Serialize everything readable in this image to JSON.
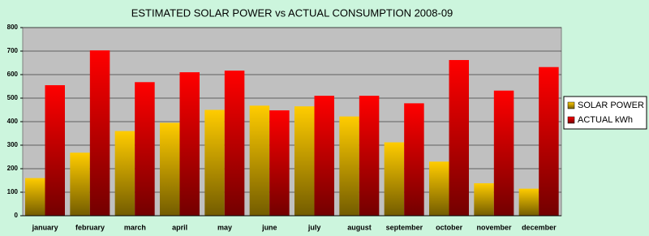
{
  "chart_data": {
    "type": "bar",
    "title": "ESTIMATED SOLAR POWER vs ACTUAL CONSUMPTION 2008-09",
    "categories": [
      "january",
      "february",
      "march",
      "april",
      "may",
      "june",
      "july",
      "august",
      "september",
      "october",
      "november",
      "december"
    ],
    "series": [
      {
        "name": "SOLAR POWER",
        "color": "#ffcc00",
        "values": [
          160,
          268,
          360,
          395,
          450,
          468,
          465,
          422,
          312,
          230,
          138,
          115
        ]
      },
      {
        "name": "ACTUAL kWh",
        "color": "#ff0000",
        "values": [
          555,
          703,
          568,
          610,
          617,
          448,
          510,
          510,
          478,
          662,
          532,
          632
        ]
      }
    ],
    "ylim": [
      0,
      800
    ],
    "yticks": [
      0,
      100,
      200,
      300,
      400,
      500,
      600,
      700,
      800
    ],
    "grid": true,
    "legend": "right"
  }
}
